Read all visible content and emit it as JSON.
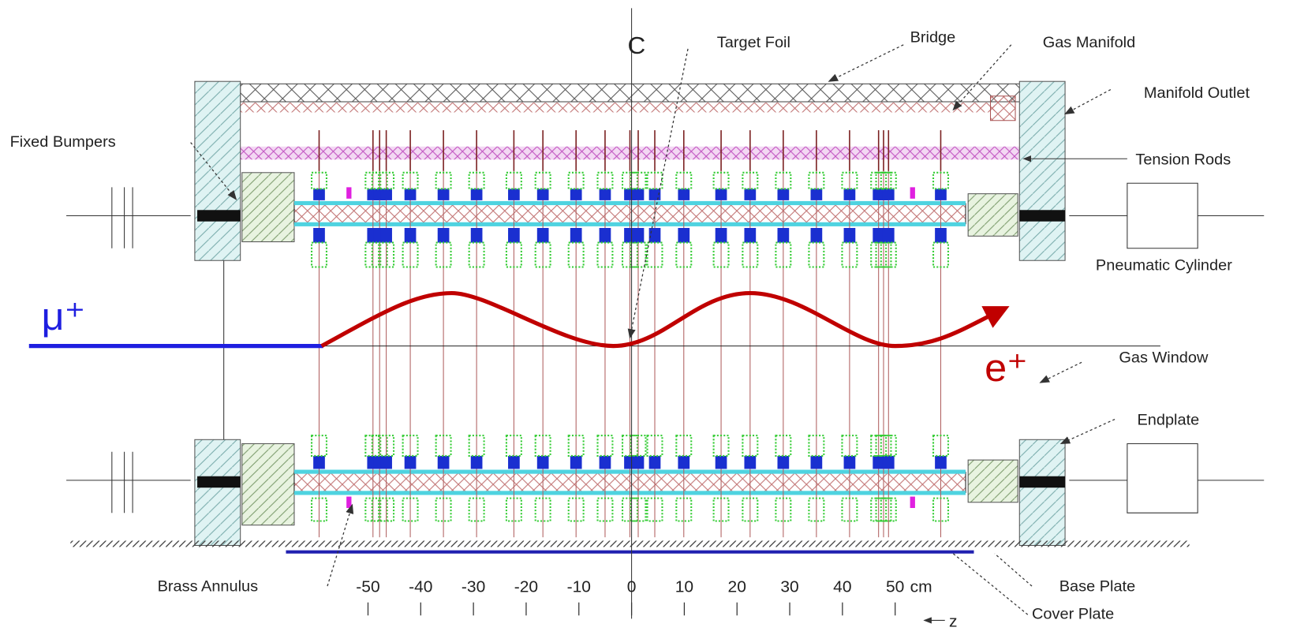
{
  "axis_label": "C",
  "labels": {
    "target_foil": "Target Foil",
    "bridge": "Bridge",
    "gas_manifold": "Gas Manifold",
    "manifold_outlet": "Manifold Outlet",
    "fixed_bumpers": "Fixed Bumpers",
    "tension_rods": "Tension Rods",
    "pneumatic_cylinder": "Pneumatic Cylinder",
    "gas_window": "Gas Window",
    "endplate": "Endplate",
    "brass_annulus": "Brass Annulus",
    "base_plate": "Base Plate",
    "cover_plate": "Cover Plate"
  },
  "particles": {
    "incoming": "μ⁺",
    "outgoing": "e⁺"
  },
  "scale": {
    "ticks": [
      -50,
      -40,
      -30,
      -20,
      -10,
      0,
      10,
      20,
      30,
      40,
      50
    ],
    "unit": "cm",
    "axis": "z"
  }
}
